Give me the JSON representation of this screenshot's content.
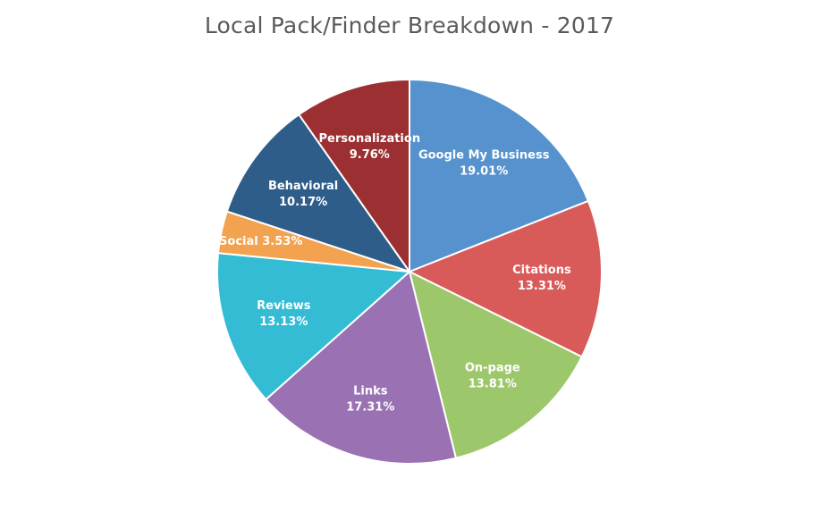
{
  "chart_data": {
    "type": "pie",
    "title": "Local Pack/Finder Breakdown - 2017",
    "slices": [
      {
        "name": "Google My Business",
        "value": 19.01,
        "value_label": "19.01%",
        "color": "#5592ce",
        "label_layout": "two-line"
      },
      {
        "name": "Citations",
        "value": 13.31,
        "value_label": "13.31%",
        "color": "#d95b59",
        "label_layout": "two-line"
      },
      {
        "name": "On-page",
        "value": 13.81,
        "value_label": "13.81%",
        "color": "#9dc76b",
        "label_layout": "two-line"
      },
      {
        "name": "Links",
        "value": 17.31,
        "value_label": "17.31%",
        "color": "#9a72b4",
        "label_layout": "two-line"
      },
      {
        "name": "Reviews",
        "value": 13.13,
        "value_label": "13.13%",
        "color": "#35bcd5",
        "label_layout": "two-line"
      },
      {
        "name": "Social",
        "value": 3.53,
        "value_label": "3.53%",
        "color": "#f3a24f",
        "label_layout": "one-line"
      },
      {
        "name": "Behavioral",
        "value": 10.17,
        "value_label": "10.17%",
        "color": "#2f5d8a",
        "label_layout": "two-line"
      },
      {
        "name": "Personalization",
        "value": 9.76,
        "value_label": "9.76%",
        "color": "#9c2f31",
        "label_layout": "two-line"
      }
    ],
    "start_angle": "top",
    "direction": "clockwise",
    "legend": "none",
    "data_labels": "inside"
  }
}
